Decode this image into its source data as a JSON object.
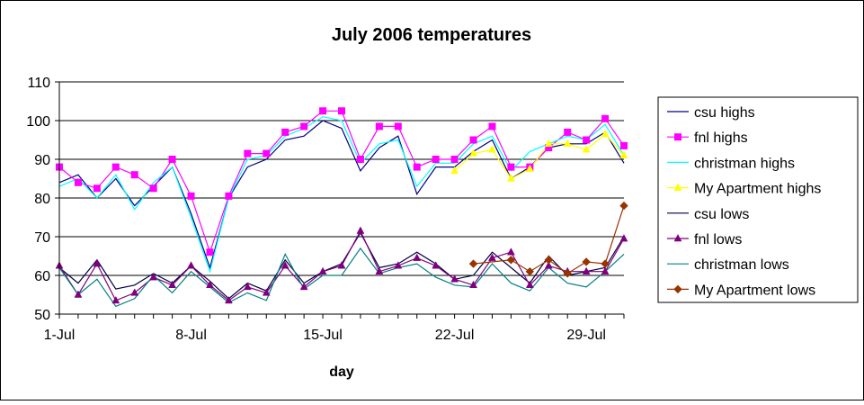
{
  "chart_data": {
    "type": "line",
    "title": "July 2006 temperatures",
    "xlabel": "day",
    "ylabel": "",
    "ylim": [
      50,
      110
    ],
    "yticks": [
      50,
      60,
      70,
      80,
      90,
      100,
      110
    ],
    "x": [
      1,
      2,
      3,
      4,
      5,
      6,
      7,
      8,
      9,
      10,
      11,
      12,
      13,
      14,
      15,
      16,
      17,
      18,
      19,
      20,
      21,
      22,
      23,
      24,
      25,
      26,
      27,
      28,
      29,
      30,
      31
    ],
    "xtick_labels": [
      {
        "day": 1,
        "label": "1-Jul"
      },
      {
        "day": 8,
        "label": "8-Jul"
      },
      {
        "day": 15,
        "label": "15-Jul"
      },
      {
        "day": 22,
        "label": "22-Jul"
      },
      {
        "day": 29,
        "label": "29-Jul"
      }
    ],
    "grid": "horizontal",
    "legend": "right",
    "series": [
      {
        "name": "csu highs",
        "color": "#000080",
        "marker": "none",
        "values": [
          84,
          86,
          80,
          85,
          78,
          83,
          88,
          76,
          62,
          80,
          88,
          90,
          95,
          96,
          100,
          98,
          87,
          93,
          96,
          81,
          88,
          88,
          92,
          95,
          85,
          88,
          93,
          94,
          94,
          97,
          89
        ]
      },
      {
        "name": "fnl highs",
        "color": "#ff00ff",
        "marker": "square",
        "values": [
          88,
          84,
          82.5,
          88,
          86,
          82.5,
          90,
          80.5,
          66,
          80.5,
          91.5,
          91.5,
          97,
          98.5,
          102.5,
          102.5,
          90,
          98.5,
          98.5,
          88,
          90,
          90,
          95,
          98.5,
          88,
          88,
          93,
          97,
          95,
          100.5,
          93.5
        ]
      },
      {
        "name": "christman highs",
        "color": "#00ffff",
        "marker": "none",
        "values": [
          83,
          85,
          80,
          86,
          77,
          84,
          88,
          75,
          61,
          80,
          90,
          91,
          96,
          98,
          101,
          100,
          89,
          94,
          95,
          83,
          89,
          89,
          94,
          96,
          87,
          92,
          94,
          96,
          95,
          99,
          91
        ]
      },
      {
        "name": "My Apartment highs",
        "color": "#ffff00",
        "marker": "triangle",
        "values": [
          null,
          null,
          null,
          null,
          null,
          null,
          null,
          null,
          null,
          null,
          null,
          null,
          null,
          null,
          null,
          null,
          null,
          null,
          null,
          null,
          null,
          87,
          91.5,
          92.5,
          85,
          87.5,
          94,
          94,
          92.5,
          96.5,
          91
        ]
      },
      {
        "name": "csu lows",
        "color": "#000040",
        "marker": "none",
        "values": [
          62,
          58,
          64,
          56.5,
          57.5,
          60.5,
          58,
          62.5,
          58.5,
          54,
          58,
          56,
          64,
          58,
          61,
          63,
          71,
          62,
          63,
          66,
          63,
          59,
          60,
          66,
          62,
          58,
          65,
          60,
          61,
          62,
          70
        ]
      },
      {
        "name": "fnl lows",
        "color": "#800080",
        "marker": "triangle",
        "values": [
          62.5,
          55,
          63,
          53.5,
          55.5,
          59.5,
          57.5,
          62.5,
          57.5,
          53.5,
          57,
          55.5,
          62.5,
          57,
          61,
          62.5,
          71.5,
          61,
          62.5,
          64.5,
          62.5,
          59,
          57.5,
          64.5,
          66,
          57.5,
          62.5,
          61,
          61,
          61,
          69.5
        ]
      },
      {
        "name": "christman lows",
        "color": "#008080",
        "marker": "none",
        "values": [
          62,
          55,
          59,
          52,
          54,
          60,
          55.5,
          61,
          57,
          53,
          55.5,
          53.5,
          65.5,
          56.5,
          60,
          60,
          67,
          60.5,
          62,
          63,
          59.5,
          57.5,
          57,
          63,
          58,
          56,
          62,
          58,
          57,
          61,
          65.5
        ]
      },
      {
        "name": "My Apartment lows",
        "color": "#993300",
        "marker": "diamond",
        "values": [
          null,
          null,
          null,
          null,
          null,
          null,
          null,
          null,
          null,
          null,
          null,
          null,
          null,
          null,
          null,
          null,
          null,
          null,
          null,
          null,
          null,
          null,
          63,
          null,
          64,
          61,
          64,
          60.5,
          63.5,
          63,
          78
        ]
      }
    ]
  }
}
